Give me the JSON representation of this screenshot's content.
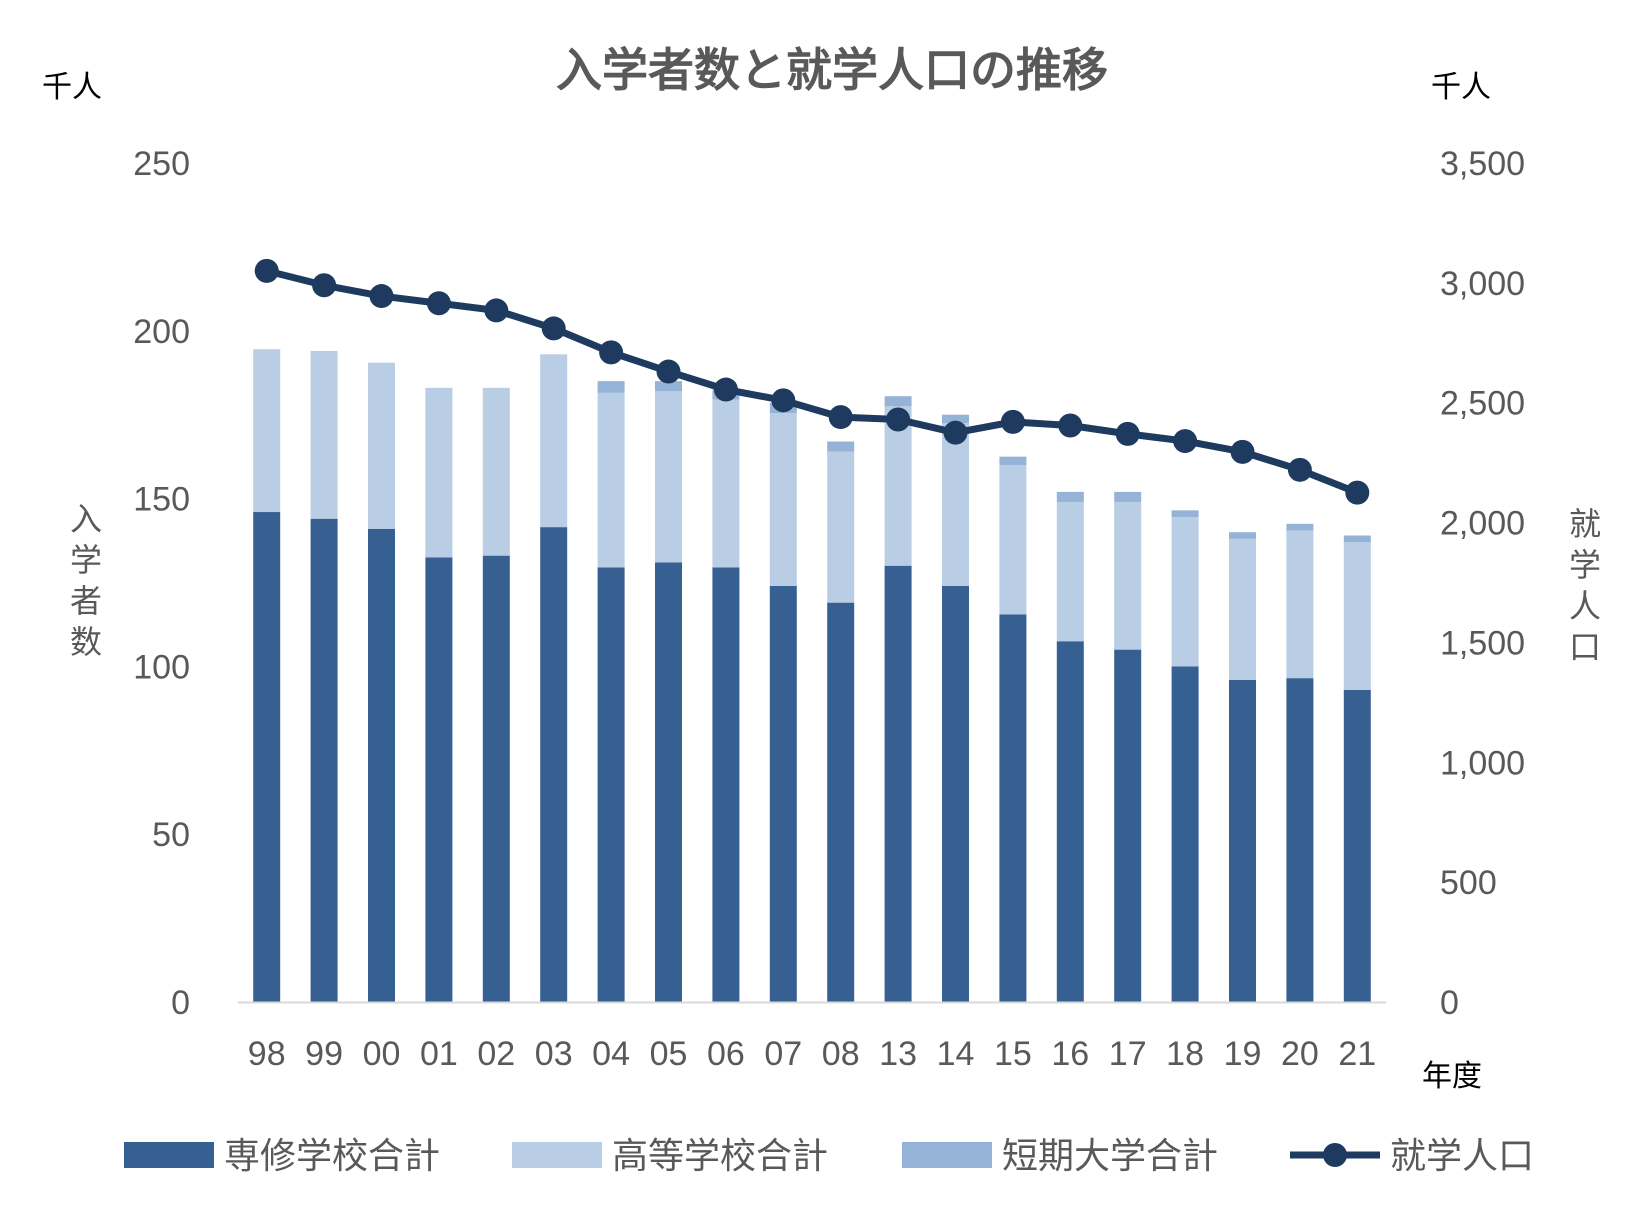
{
  "chart_data": {
    "type": "bar",
    "title": "入学者数と就学人口の推移",
    "left_unit": "千人",
    "right_unit": "千人",
    "ylabel_left": "入学者数",
    "ylabel_right": "就学人口",
    "xlabel": "年度",
    "ylim_left": [
      0,
      250
    ],
    "ylim_right": [
      0,
      3500
    ],
    "left_ticks": [
      "0",
      "50",
      "100",
      "150",
      "200",
      "250"
    ],
    "right_ticks": [
      "0",
      "500",
      "1,000",
      "1,500",
      "2,000",
      "2,500",
      "3,000",
      "3,500"
    ],
    "categories": [
      "98",
      "99",
      "00",
      "01",
      "02",
      "03",
      "04",
      "05",
      "06",
      "07",
      "08",
      "13",
      "14",
      "15",
      "16",
      "17",
      "18",
      "19",
      "20",
      "21"
    ],
    "stacked_series": [
      {
        "name": "専修学校合計",
        "color": "#376092",
        "values": [
          146,
          144,
          141,
          132.5,
          133,
          141.5,
          129.5,
          131,
          129.5,
          124,
          119,
          130,
          124,
          115.5,
          107.5,
          105,
          100,
          96,
          96.5,
          93
        ]
      },
      {
        "name": "高等学校合計",
        "color": "#B9CDE5",
        "values": [
          48.5,
          50,
          49.5,
          50.5,
          50,
          51.5,
          52,
          51,
          50,
          51.5,
          45,
          47.5,
          48.5,
          44.5,
          41.5,
          44,
          44.5,
          42,
          44,
          44
        ]
      },
      {
        "name": "短期大学合計",
        "color": "#95B3D7",
        "values": [
          0,
          0,
          0,
          0,
          0,
          0,
          3.5,
          3,
          3,
          3,
          3,
          3,
          2.5,
          2.5,
          3,
          3,
          2,
          2,
          2,
          2
        ]
      }
    ],
    "line_series": {
      "name": "就学人口",
      "color": "#1F3A5F",
      "axis": "right",
      "values": [
        3050,
        2990,
        2945,
        2915,
        2885,
        2810,
        2710,
        2630,
        2555,
        2510,
        2440,
        2430,
        2375,
        2420,
        2405,
        2370,
        2340,
        2295,
        2220,
        2125
      ]
    },
    "legend_position": "bottom",
    "grid": false
  }
}
